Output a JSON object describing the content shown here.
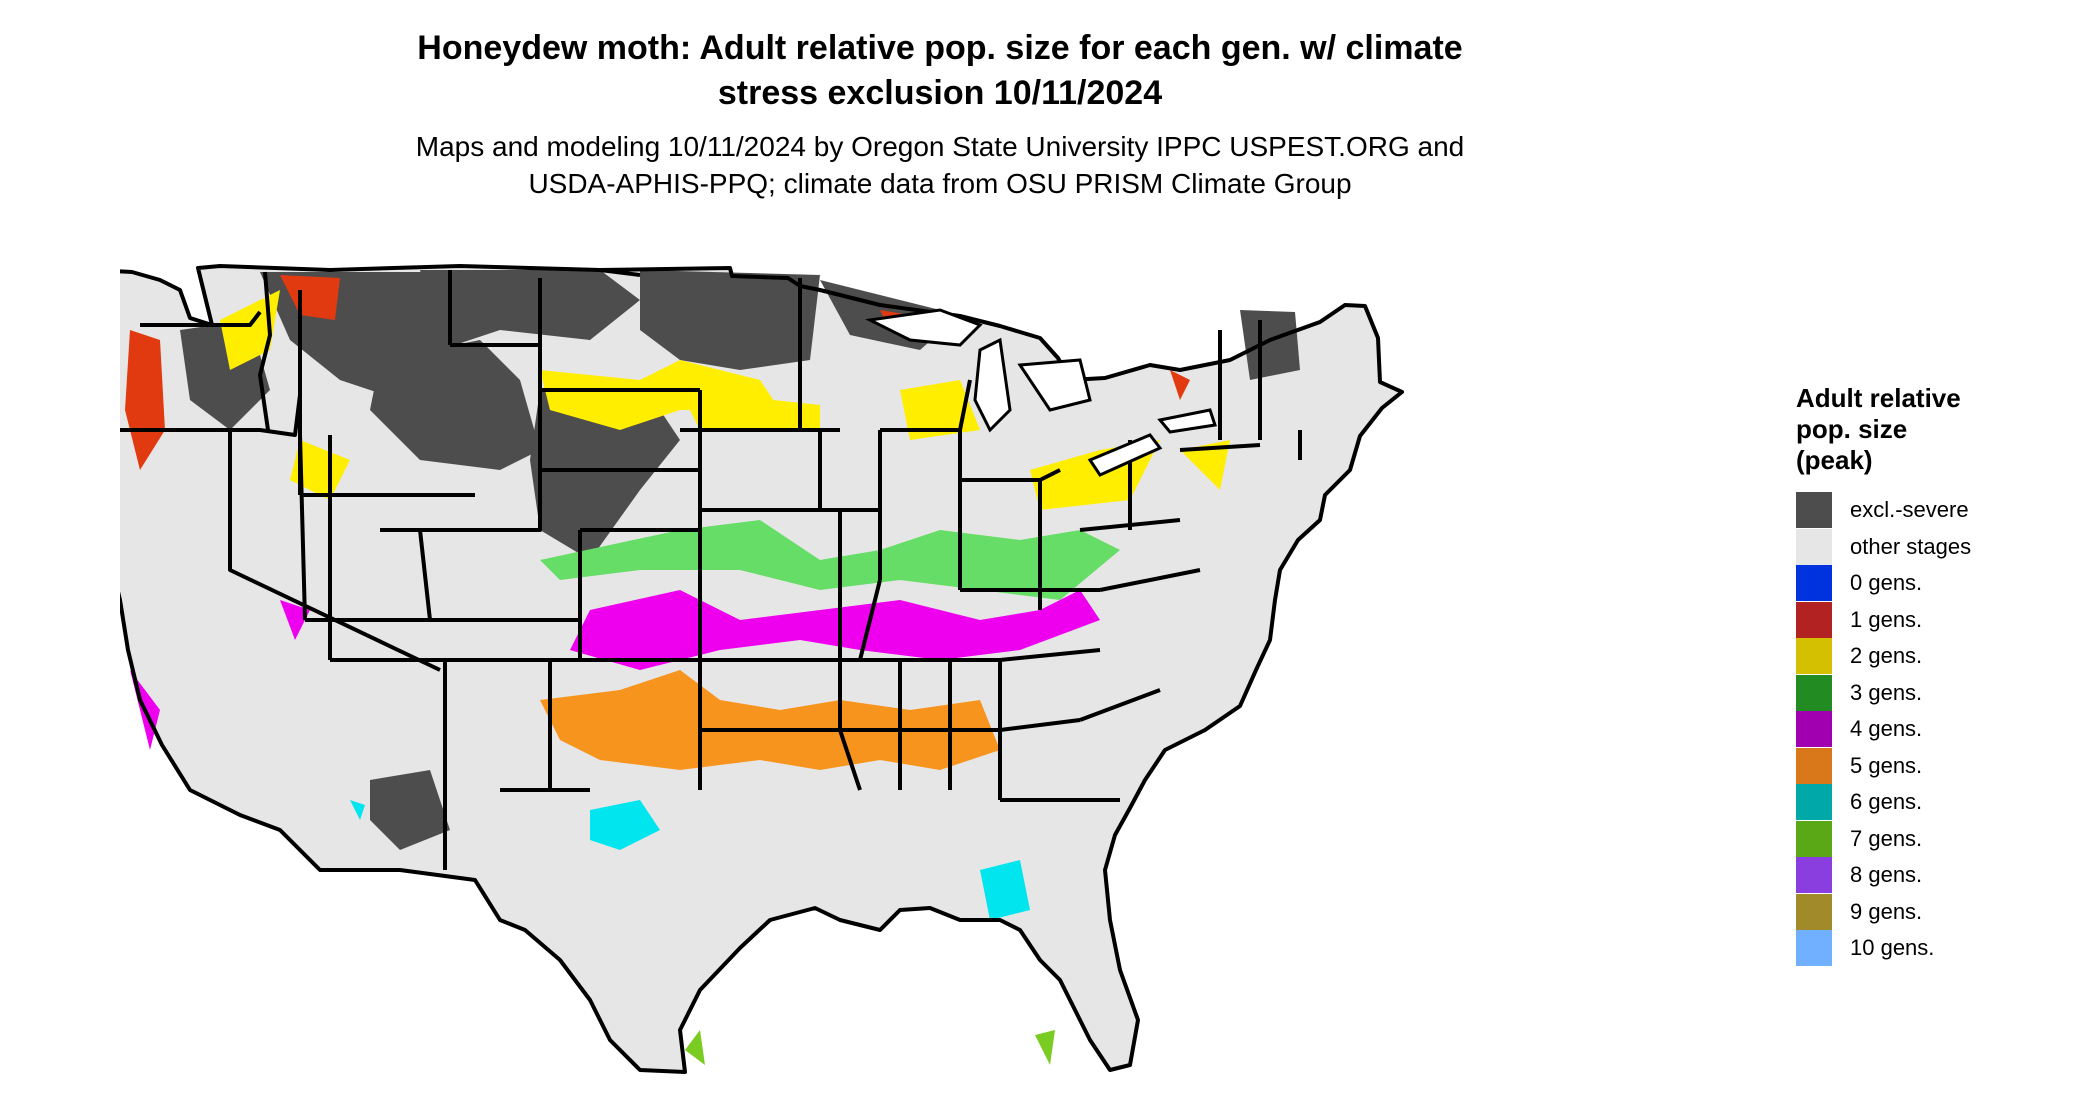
{
  "title_line1": "Honeydew moth: Adult relative pop. size for each gen. w/ climate",
  "title_line2": "stress exclusion 10/11/2024",
  "subtitle_line1": "Maps and modeling 10/11/2024 by Oregon State University IPPC USPEST.ORG and",
  "subtitle_line2": "USDA-APHIS-PPQ; climate data from OSU PRISM Climate Group",
  "legend": {
    "title_line1": "Adult relative",
    "title_line2": "pop. size",
    "title_line3": "(peak)",
    "items": [
      {
        "label": "excl.-severe",
        "color": "#4d4d4d"
      },
      {
        "label": "other stages",
        "color": "#e6e6e6"
      },
      {
        "label": "0 gens.",
        "color": "#0033dd"
      },
      {
        "label": "1 gens.",
        "color": "#b22222"
      },
      {
        "label": "2 gens.",
        "color": "#d4c000"
      },
      {
        "label": "3 gens.",
        "color": "#228b22"
      },
      {
        "label": "4 gens.",
        "color": "#a000b0"
      },
      {
        "label": "5 gens.",
        "color": "#d8781a"
      },
      {
        "label": "6 gens.",
        "color": "#00a8a8"
      },
      {
        "label": "7 gens.",
        "color": "#5aa815"
      },
      {
        "label": "8 gens.",
        "color": "#8a3ee0"
      },
      {
        "label": "9 gens.",
        "color": "#a08a2a"
      },
      {
        "label": "10 gens.",
        "color": "#70b0ff"
      }
    ]
  },
  "map_colors": {
    "land": "#e6e6e6",
    "excluded": "#4d4d4d",
    "gen1": "#e23a10",
    "gen2": "#ffee00",
    "gen3": "#66dd66",
    "gen4": "#ee00ee",
    "gen5": "#f7941d",
    "gen6": "#00e5ee",
    "gen7": "#7acc22",
    "border": "#000000"
  }
}
